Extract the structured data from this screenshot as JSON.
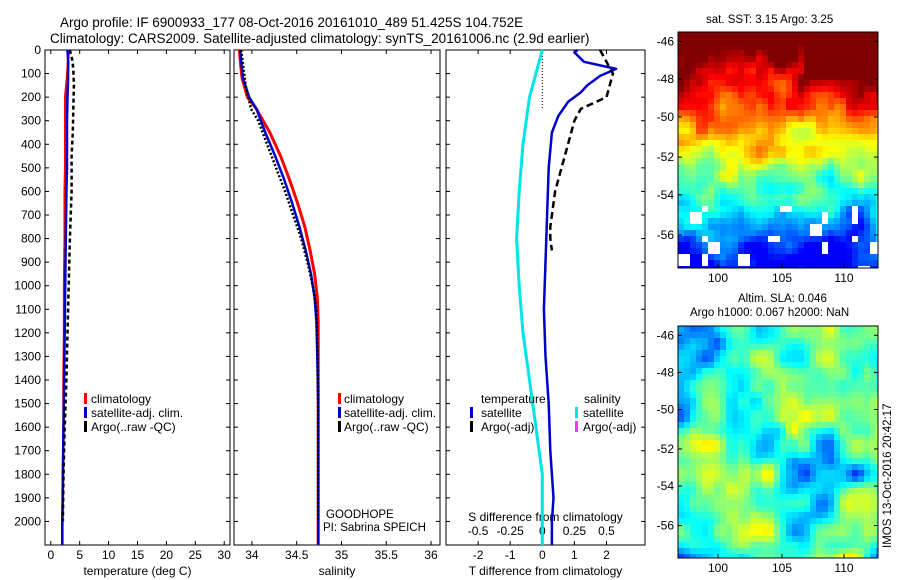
{
  "header": {
    "line1": "Argo profile: IF 6900933_177 08-Oct-2016 20161010_489 51.425S 104.752E",
    "line2": "Climatology: CARS2009. Satellite-adjusted climatology: synTS_20161006.nc (2.9d earlier)"
  },
  "colors": {
    "climatology": "#ff0000",
    "satellite": "#0000cc",
    "argo": "#000000",
    "satellite_salinity": "#00e5e5",
    "argo_salinity_adj": "#ff33ff"
  },
  "legend": {
    "climatology": "climatology",
    "satellite_adj": "satellite-adj. clim.",
    "argo_raw_qc": "Argo(..raw -QC)",
    "temperature_head": "temperature",
    "salinity_head": "salinity",
    "satellite": "satellite",
    "argo_adj": "Argo(-adj)"
  },
  "notes": {
    "goodhope": "GOODHOPE",
    "pi": "PI: Sabrina SPEICH",
    "imos": "IMOS 13-Oct-2016 20:42:17"
  },
  "map_sst": {
    "title": "sat. SST: 3.15 Argo: 3.25"
  },
  "map_sla": {
    "title_line1": "Altim. SLA: 0.046",
    "title_line2": "Argo h1000: 0.067 h2000: NaN"
  },
  "chart_data": [
    {
      "type": "line",
      "panel": "temperature",
      "xlabel": "temperature (deg C)",
      "ylabel": "",
      "xlim": [
        -1,
        31
      ],
      "ylim": [
        0,
        2100
      ],
      "y_reversed": true,
      "xticks": [
        0,
        5,
        10,
        15,
        20,
        25,
        30
      ],
      "yticks": [
        0,
        100,
        200,
        300,
        400,
        500,
        600,
        700,
        800,
        900,
        1000,
        1100,
        1200,
        1300,
        1400,
        1500,
        1600,
        1700,
        1800,
        1900,
        2000
      ],
      "series": [
        {
          "name": "climatology",
          "x": [
            3.1,
            3.0,
            2.8,
            2.5,
            2.5,
            2.5,
            2.5,
            2.4,
            2.4,
            2.3,
            2.3,
            2.2,
            2.2,
            2.1,
            2.1,
            2.0,
            2.0,
            2.0
          ],
          "y": [
            0,
            50,
            120,
            200,
            300,
            400,
            500,
            600,
            800,
            1000,
            1200,
            1400,
            1600,
            1800,
            1900,
            2000,
            2050,
            2100
          ]
        },
        {
          "name": "satellite-adj. clim.",
          "x": [
            2.9,
            3.0,
            3.0,
            2.9,
            2.8,
            2.8,
            2.8,
            2.7,
            2.6,
            2.5,
            2.4,
            2.3,
            2.2,
            2.1,
            2.0,
            2.0
          ],
          "y": [
            0,
            50,
            120,
            200,
            300,
            400,
            500,
            600,
            800,
            1000,
            1200,
            1400,
            1600,
            1800,
            2000,
            2100
          ]
        },
        {
          "name": "Argo(..raw -QC)",
          "x": [
            3.3,
            3.7,
            3.9,
            4.0,
            3.9,
            3.8,
            3.6,
            3.6,
            3.3,
            3.1,
            2.9,
            2.7,
            2.4,
            2.2,
            2.1
          ],
          "y": [
            0,
            40,
            80,
            150,
            250,
            350,
            450,
            600,
            800,
            1000,
            1200,
            1400,
            1600,
            1800,
            2000
          ]
        }
      ]
    },
    {
      "type": "line",
      "panel": "salinity",
      "xlabel": "salinity",
      "ylabel": "",
      "xlim": [
        33.8,
        36.1
      ],
      "ylim": [
        0,
        2100
      ],
      "y_reversed": true,
      "xticks": [
        34,
        34.5,
        35,
        35.5,
        36
      ],
      "xticklabels": [
        "34",
        "34.5",
        "35",
        "35.5",
        "36"
      ],
      "series": [
        {
          "name": "climatology",
          "x": [
            33.86,
            33.87,
            33.89,
            33.95,
            34.05,
            34.2,
            34.32,
            34.42,
            34.51,
            34.59,
            34.65,
            34.7,
            34.73,
            34.74,
            34.74,
            34.74,
            34.74,
            34.74
          ],
          "y": [
            0,
            50,
            120,
            200,
            250,
            350,
            450,
            550,
            650,
            750,
            850,
            950,
            1050,
            1150,
            1300,
            1500,
            1800,
            2100
          ]
        },
        {
          "name": "satellite-adj. clim.",
          "x": [
            33.87,
            33.88,
            33.9,
            33.97,
            34.05,
            34.15,
            34.26,
            34.36,
            34.45,
            34.53,
            34.6,
            34.66,
            34.7,
            34.72,
            34.73,
            34.74,
            34.74,
            34.74
          ],
          "y": [
            0,
            50,
            120,
            200,
            250,
            350,
            450,
            550,
            650,
            750,
            850,
            950,
            1050,
            1150,
            1300,
            1500,
            1800,
            2100
          ]
        },
        {
          "name": "Argo(..raw -QC)",
          "x": [
            33.88,
            33.9,
            33.93,
            33.99,
            34.07,
            34.17,
            34.27,
            34.37,
            34.46,
            34.55,
            34.62,
            34.68,
            34.72,
            34.73,
            34.74,
            34.74
          ],
          "y": [
            0,
            60,
            150,
            250,
            300,
            400,
            500,
            600,
            700,
            800,
            900,
            1000,
            1100,
            1200,
            1500,
            2000
          ]
        }
      ]
    },
    {
      "type": "line",
      "panel": "difference",
      "xlabel": "T difference from climatology",
      "xlabel_top": "S difference from climatology",
      "ylabel": "",
      "xlim": [
        -3,
        3.2
      ],
      "ylim": [
        0,
        2100
      ],
      "y_reversed": true,
      "xticks": [
        -2,
        -1,
        0,
        1,
        2
      ],
      "top_ticks": [
        -0.5,
        -0.25,
        0,
        0.25,
        0.5
      ],
      "top_ticklabels": [
        "-0.5",
        "-0.25",
        "0",
        "0.25",
        "0.5"
      ],
      "series": [
        {
          "name": "temperature satellite",
          "x": [
            1.1,
            1.0,
            1.3,
            2.3,
            1.8,
            1.4,
            1.2,
            0.8,
            0.5,
            0.3,
            0.2,
            0.15,
            0.1,
            0.05,
            0.1,
            0.2,
            0.25,
            0.3,
            0.35,
            0.3,
            0.3
          ],
          "y": [
            0,
            10,
            50,
            80,
            110,
            150,
            180,
            220,
            280,
            350,
            500,
            700,
            900,
            1100,
            1300,
            1500,
            1700,
            1800,
            1900,
            2000,
            2100
          ]
        },
        {
          "name": "temperature Argo(-adj)",
          "x": [
            1.8,
            2.2,
            2.0,
            1.2,
            1.0,
            0.9,
            0.8,
            0.7,
            0.6,
            0.5,
            0.4,
            0.35,
            0.3,
            0.25,
            0.25,
            0.3
          ],
          "y": [
            0,
            100,
            200,
            250,
            300,
            350,
            400,
            450,
            500,
            550,
            600,
            650,
            700,
            750,
            800,
            850
          ]
        },
        {
          "name": "salinity satellite",
          "x": [
            0.0,
            -0.05,
            -0.1,
            -0.15,
            -0.18,
            -0.2,
            -0.18,
            -0.15,
            -0.1,
            -0.05,
            0.0,
            0.0
          ],
          "y": [
            0,
            100,
            200,
            400,
            600,
            800,
            1000,
            1200,
            1400,
            1600,
            1800,
            2100
          ]
        },
        {
          "name": "salinity Argo(-adj)",
          "x": [],
          "y": []
        }
      ]
    }
  ]
}
